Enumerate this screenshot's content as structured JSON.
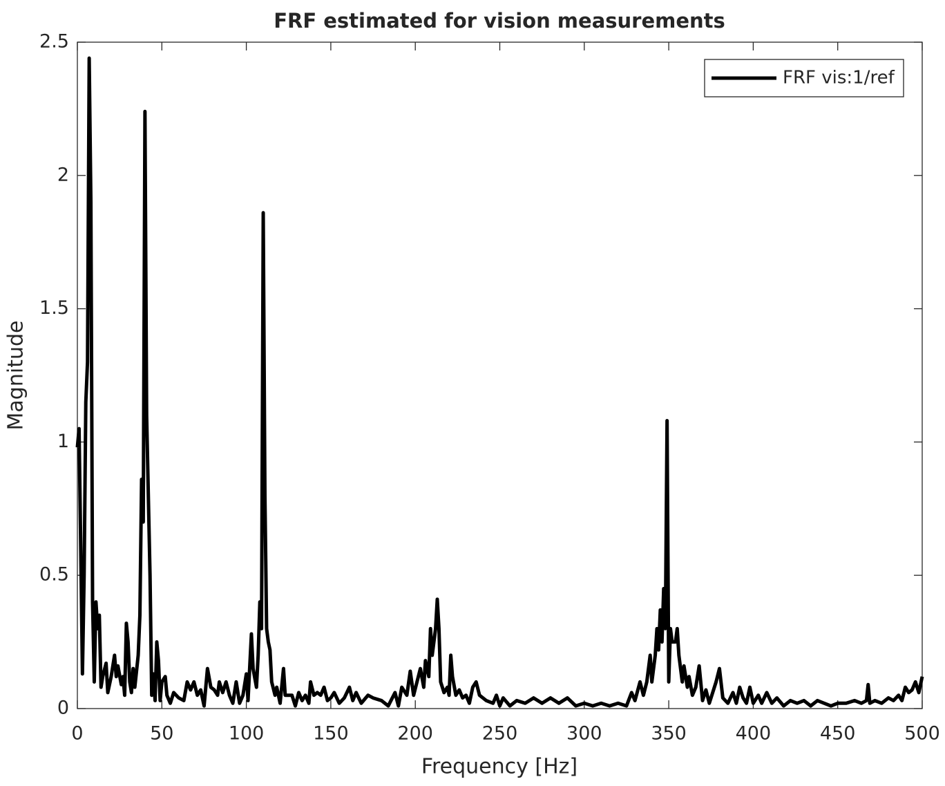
{
  "chart_data": {
    "type": "line",
    "title": "FRF estimated for vision measurements",
    "x_label": "Frequency [Hz]",
    "y_label": "Magnitude",
    "xlim": [
      0,
      500
    ],
    "ylim": [
      0,
      2.5
    ],
    "xticks": [
      0,
      50,
      100,
      150,
      200,
      250,
      300,
      350,
      400,
      450,
      500
    ],
    "yticks": [
      0,
      0.5,
      1,
      1.5,
      2,
      2.5
    ],
    "legend_position": "upper right",
    "x": [
      0,
      1,
      2,
      3,
      4,
      5,
      6,
      7,
      8,
      9,
      10,
      11,
      12,
      13,
      14,
      15,
      17,
      18,
      20,
      22,
      23,
      24,
      26,
      27,
      28,
      29,
      30,
      31,
      32,
      33,
      34,
      36,
      37,
      38,
      39,
      40,
      41,
      42,
      43,
      44,
      45,
      46,
      47,
      48,
      49,
      50,
      52,
      53,
      55,
      57,
      60,
      63,
      65,
      67,
      69,
      71,
      73,
      75,
      77,
      79,
      81,
      83,
      84,
      86,
      88,
      90,
      92,
      94,
      96,
      98,
      100,
      101,
      103,
      104,
      106,
      107,
      108,
      109,
      110,
      111,
      112,
      113,
      114,
      115,
      117,
      118,
      120,
      122,
      123,
      125,
      127,
      129,
      131,
      133,
      135,
      137,
      138,
      140,
      142,
      144,
      146,
      148,
      150,
      152,
      155,
      158,
      161,
      163,
      165,
      168,
      172,
      175,
      180,
      184,
      188,
      190,
      192,
      195,
      197,
      199,
      201,
      203,
      205,
      206,
      208,
      209,
      210,
      212,
      213,
      214,
      215,
      217,
      219,
      220,
      221,
      222,
      224,
      226,
      228,
      230,
      232,
      234,
      236,
      238,
      242,
      246,
      248,
      250,
      252,
      256,
      260,
      265,
      270,
      275,
      280,
      285,
      290,
      295,
      300,
      305,
      310,
      315,
      320,
      325,
      328,
      330,
      333,
      335,
      337,
      339,
      340,
      342,
      343,
      344,
      345,
      346,
      347,
      348,
      349,
      350,
      351,
      352,
      354,
      355,
      356,
      358,
      359,
      361,
      362,
      364,
      366,
      368,
      370,
      372,
      374,
      376,
      378,
      380,
      382,
      385,
      388,
      390,
      392,
      394,
      396,
      398,
      400,
      403,
      405,
      408,
      411,
      414,
      418,
      422,
      426,
      430,
      434,
      438,
      442,
      446,
      450,
      455,
      460,
      464,
      467,
      468,
      469,
      472,
      476,
      480,
      483,
      486,
      488,
      490,
      492,
      494,
      496,
      498,
      500
    ],
    "series": [
      {
        "name": "FRF vis:1/ref",
        "color": "#000000",
        "values": [
          0.98,
          1.05,
          0.6,
          0.13,
          0.5,
          1.15,
          1.3,
          2.44,
          1.9,
          0.4,
          0.1,
          0.4,
          0.3,
          0.35,
          0.08,
          0.12,
          0.17,
          0.06,
          0.12,
          0.2,
          0.12,
          0.16,
          0.09,
          0.12,
          0.05,
          0.32,
          0.25,
          0.1,
          0.06,
          0.15,
          0.08,
          0.2,
          0.35,
          0.86,
          0.7,
          2.24,
          1.1,
          0.8,
          0.5,
          0.05,
          0.13,
          0.03,
          0.25,
          0.18,
          0.03,
          0.1,
          0.12,
          0.05,
          0.02,
          0.06,
          0.04,
          0.03,
          0.1,
          0.07,
          0.1,
          0.05,
          0.07,
          0.01,
          0.15,
          0.08,
          0.07,
          0.05,
          0.1,
          0.06,
          0.1,
          0.05,
          0.02,
          0.1,
          0.02,
          0.05,
          0.13,
          0.03,
          0.28,
          0.15,
          0.08,
          0.2,
          0.4,
          0.3,
          1.86,
          0.8,
          0.3,
          0.25,
          0.22,
          0.1,
          0.05,
          0.08,
          0.02,
          0.15,
          0.05,
          0.05,
          0.05,
          0.01,
          0.06,
          0.03,
          0.05,
          0.02,
          0.1,
          0.05,
          0.06,
          0.05,
          0.08,
          0.03,
          0.04,
          0.06,
          0.02,
          0.04,
          0.08,
          0.03,
          0.06,
          0.02,
          0.05,
          0.04,
          0.03,
          0.01,
          0.06,
          0.01,
          0.08,
          0.05,
          0.14,
          0.05,
          0.1,
          0.15,
          0.08,
          0.18,
          0.12,
          0.3,
          0.2,
          0.3,
          0.41,
          0.3,
          0.1,
          0.06,
          0.08,
          0.05,
          0.2,
          0.12,
          0.05,
          0.07,
          0.04,
          0.05,
          0.02,
          0.08,
          0.1,
          0.05,
          0.03,
          0.02,
          0.05,
          0.01,
          0.04,
          0.01,
          0.03,
          0.02,
          0.04,
          0.02,
          0.04,
          0.02,
          0.04,
          0.01,
          0.02,
          0.01,
          0.02,
          0.01,
          0.02,
          0.01,
          0.06,
          0.03,
          0.1,
          0.05,
          0.1,
          0.2,
          0.1,
          0.2,
          0.3,
          0.22,
          0.37,
          0.25,
          0.45,
          0.3,
          1.08,
          0.1,
          0.3,
          0.25,
          0.25,
          0.3,
          0.2,
          0.1,
          0.16,
          0.08,
          0.12,
          0.05,
          0.08,
          0.16,
          0.03,
          0.07,
          0.02,
          0.06,
          0.1,
          0.15,
          0.04,
          0.02,
          0.06,
          0.02,
          0.08,
          0.04,
          0.02,
          0.08,
          0.02,
          0.05,
          0.02,
          0.06,
          0.02,
          0.04,
          0.01,
          0.03,
          0.02,
          0.03,
          0.01,
          0.03,
          0.02,
          0.01,
          0.02,
          0.02,
          0.03,
          0.02,
          0.03,
          0.09,
          0.02,
          0.03,
          0.02,
          0.04,
          0.03,
          0.05,
          0.03,
          0.08,
          0.06,
          0.07,
          0.1,
          0.06,
          0.12
        ]
      }
    ]
  }
}
